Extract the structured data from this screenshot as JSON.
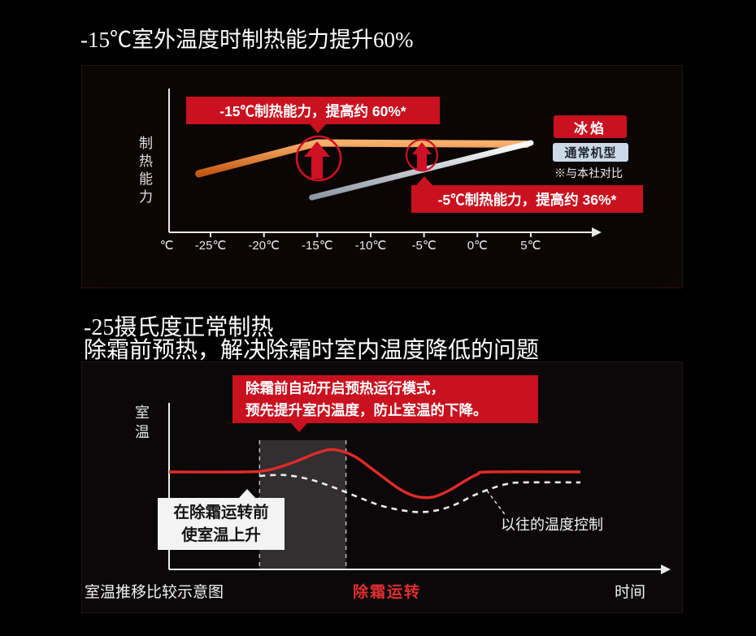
{
  "colors": {
    "background": "#000000",
    "accent_red": "#c9111f",
    "brand_orange": "#e4722e",
    "curve_red": "#e22a28",
    "normal_line": "#dfe3e8"
  },
  "section1": {
    "title": "-15℃室外温度时制热能力提升60%",
    "ylabel": "制热能力",
    "callout_60": "-15℃制热能力，提高约 60%*",
    "callout_36": "-5℃制热能力，提高约 36%*",
    "legend_brand": "冰焰",
    "legend_normal": "通常机型",
    "legend_note": "※与本社对比"
  },
  "section2": {
    "title": "-25摄氏度正常制热",
    "subtitle": "除霜前预热，解决除霜时室内温度降低的问题",
    "ylabel": "室温",
    "callout_line1": "除霜前自动开启预热运行模式，",
    "callout_line2": "预先提升室内温度，防止室温的下降。",
    "box_line1": "在除霜运转前",
    "box_line2": "使室温上升",
    "legacy_label": "以往的温度控制",
    "footer_left": "室温推移比较示意图",
    "footer_center": "除霜运转",
    "footer_right": "时间"
  },
  "chart_data": [
    {
      "id": "heating-capacity-vs-outdoor-temp",
      "type": "line",
      "ylabel": "制热能力",
      "xlabel": "℃",
      "x_range": [
        -27,
        6
      ],
      "x_ticks": [
        {
          "v": -25,
          "label": "-25℃"
        },
        {
          "v": -20,
          "label": "-20℃"
        },
        {
          "v": -15,
          "label": "-15℃"
        },
        {
          "v": -10,
          "label": "-10℃"
        },
        {
          "v": -5,
          "label": "-5℃"
        },
        {
          "v": 0,
          "label": "0℃"
        },
        {
          "v": 5,
          "label": "5℃"
        }
      ],
      "series": [
        {
          "name": "冰焰",
          "color": "#e4722e",
          "points": [
            [
              -26.1,
              46.5
            ],
            [
              -15,
              71
            ],
            [
              4.6,
              70
            ]
          ]
        },
        {
          "name": "通常机型",
          "color": "#dfe3e8",
          "points": [
            [
              -15.5,
              27.7
            ],
            [
              5,
              71
            ]
          ]
        }
      ],
      "annotations": [
        {
          "x": -15,
          "text": "-15℃制热能力，提高约 60%*"
        },
        {
          "x": -5,
          "text": "-5℃制热能力，提高约 36%*"
        }
      ],
      "note": "※与本社对比",
      "legend_position": "right",
      "grid": false
    },
    {
      "id": "room-temp-vs-time-defrost",
      "type": "line",
      "ylabel": "室温",
      "xlabel": "时间",
      "x_range": [
        0,
        100
      ],
      "series": [
        {
          "name": "solid-red-preheat-control",
          "style": "solid",
          "color": "#e22a28",
          "points": [
            [
              0,
              59.4
            ],
            [
              18,
              59.4
            ],
            [
              24,
              60.5
            ],
            [
              30,
              65
            ],
            [
              36,
              71
            ],
            [
              40,
              73
            ],
            [
              45,
              69
            ],
            [
              50,
              60
            ],
            [
              56,
              49
            ],
            [
              60,
              44.5
            ],
            [
              64,
              44
            ],
            [
              68,
              48
            ],
            [
              72,
              54
            ],
            [
              75,
              58
            ],
            [
              78,
              59.4
            ],
            [
              100,
              59.4
            ]
          ]
        },
        {
          "name": "以往的温度控制",
          "style": "dashed",
          "color": "#ededed",
          "points": [
            [
              22,
              57
            ],
            [
              28,
              57.5
            ],
            [
              34,
              55
            ],
            [
              40,
              50
            ],
            [
              46,
              44
            ],
            [
              52,
              38.5
            ],
            [
              58,
              35.5
            ],
            [
              62,
              35
            ],
            [
              66,
              36.5
            ],
            [
              70,
              40
            ],
            [
              74,
              45
            ],
            [
              78,
              49
            ],
            [
              82,
              52
            ],
            [
              86,
              53
            ],
            [
              100,
              53
            ]
          ]
        }
      ],
      "preheat_zone": {
        "t0": 22,
        "t1": 43
      },
      "defrost_label": "除霜运转",
      "caption": "室温推移比较示意图",
      "annotation_box": [
        "在除霜运转前",
        "使室温上升"
      ],
      "callout": [
        "除霜前自动开启预热运行模式，",
        "预先提升室内温度，防止室温的下降。"
      ],
      "grid": false
    }
  ]
}
